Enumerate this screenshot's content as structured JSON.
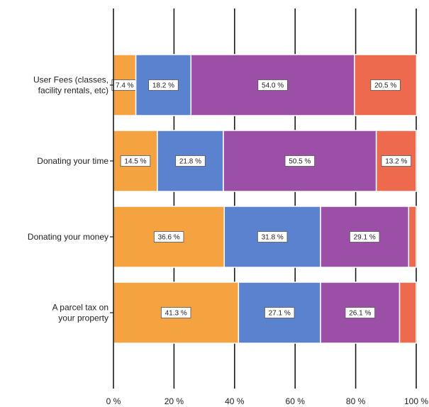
{
  "chart_data": {
    "type": "bar",
    "orientation": "horizontal",
    "stacked": true,
    "xlim": [
      0,
      100
    ],
    "grid": true,
    "tick_labels": [
      "0 %",
      "20 %",
      "40 %",
      "60 %",
      "80 %",
      "100 %"
    ],
    "categories": [
      {
        "lines": [
          "User Fees (classes,",
          "facility rentals, etc)"
        ]
      },
      {
        "lines": [
          "Donating your time"
        ]
      },
      {
        "lines": [
          "Donating your money"
        ]
      },
      {
        "lines": [
          "A parcel tax on",
          "your property"
        ]
      }
    ],
    "series": [
      {
        "color": "#f4a340",
        "values": [
          7.4,
          14.5,
          36.6,
          41.3
        ],
        "labels": [
          "7.4 %",
          "14.5 %",
          "36.6 %",
          "41.3 %"
        ]
      },
      {
        "color": "#5b82cf",
        "values": [
          18.2,
          21.8,
          31.8,
          27.1
        ],
        "labels": [
          "18.2 %",
          "21.8 %",
          "31.8 %",
          "27.1 %"
        ]
      },
      {
        "color": "#9b4fa6",
        "values": [
          54.0,
          50.5,
          29.1,
          26.1
        ],
        "labels": [
          "54.0 %",
          "50.5 %",
          "29.1 %",
          "26.1 %"
        ]
      },
      {
        "color": "#ee6a4e",
        "values": [
          20.5,
          13.2,
          2.5,
          5.5
        ],
        "labels": [
          "20.5 %",
          "13.2 %",
          "",
          ""
        ]
      }
    ]
  }
}
